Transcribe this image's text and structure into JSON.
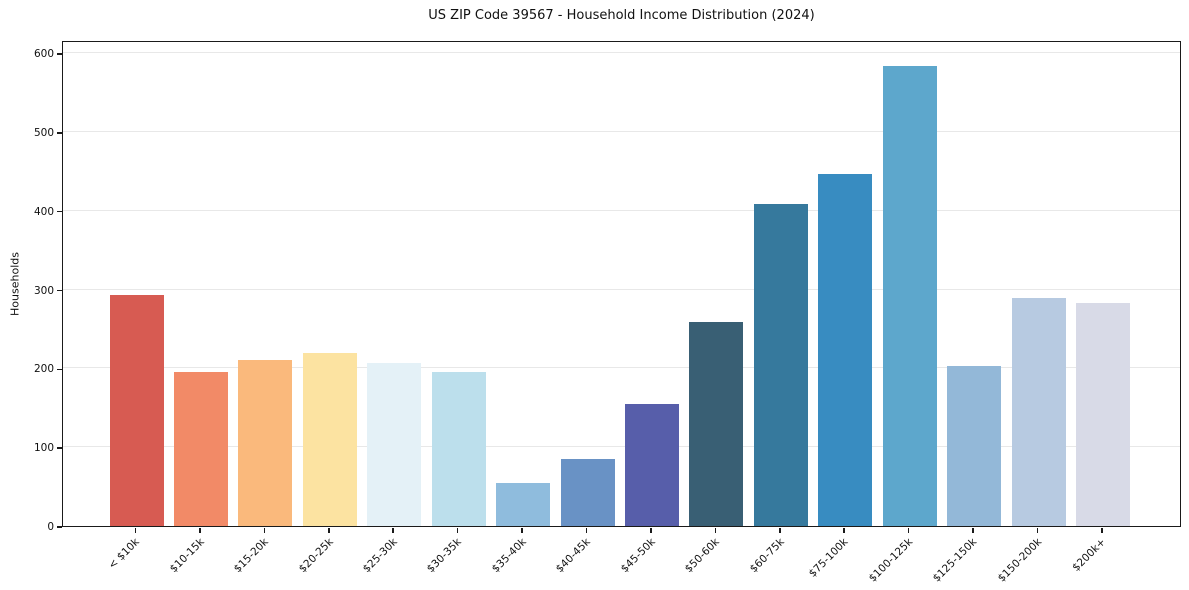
{
  "title": "US ZIP Code 39567 - Household Income Distribution (2024)",
  "chart_data": {
    "type": "bar",
    "title": "US ZIP Code 39567 - Household Income Distribution (2024)",
    "xlabel": "",
    "ylabel": "Households",
    "ylim": [
      0,
      617
    ],
    "yticks": [
      0,
      100,
      200,
      300,
      400,
      500,
      600
    ],
    "grid": "horizontal",
    "legend": "none",
    "categories": [
      "< $10k",
      "$10-15k",
      "$15-20k",
      "$20-25k",
      "$25-30k",
      "$30-35k",
      "$35-40k",
      "$40-45k",
      "$45-50k",
      "$50-60k",
      "$60-75k",
      "$75-100k",
      "$100-125k",
      "$125-150k",
      "$150-200k",
      "$200k+"
    ],
    "values": [
      293,
      196,
      211,
      219,
      207,
      196,
      55,
      85,
      155,
      259,
      409,
      447,
      583,
      203,
      289,
      283
    ],
    "bar_colors": [
      "#d75b52",
      "#f28a67",
      "#fab97c",
      "#fce3a1",
      "#e4f1f7",
      "#bcdfec",
      "#8fbcdd",
      "#6992c5",
      "#575eaa",
      "#395f74",
      "#36799d",
      "#388cc1",
      "#5da7cc",
      "#93b8d8",
      "#b7cae1",
      "#d8dae7"
    ]
  },
  "colors": {
    "spine": "#1a1a1a",
    "grid": "#e8e8e8",
    "background": "#ffffff",
    "text": "#111111"
  }
}
